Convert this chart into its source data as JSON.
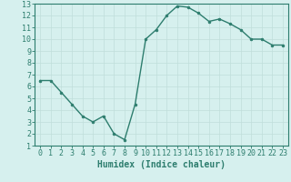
{
  "x": [
    0,
    1,
    2,
    3,
    4,
    5,
    6,
    7,
    8,
    9,
    10,
    11,
    12,
    13,
    14,
    15,
    16,
    17,
    18,
    19,
    20,
    21,
    22,
    23
  ],
  "y": [
    6.5,
    6.5,
    5.5,
    4.5,
    3.5,
    3.0,
    3.5,
    2.0,
    1.5,
    4.5,
    10.0,
    10.8,
    12.0,
    12.8,
    12.7,
    12.2,
    11.5,
    11.7,
    11.3,
    10.8,
    10.0,
    10.0,
    9.5,
    9.5
  ],
  "line_color": "#2d7d6e",
  "marker": "o",
  "marker_size": 2,
  "bg_color": "#d6f0ee",
  "grid_color": "#c0deda",
  "xlabel": "Humidex (Indice chaleur)",
  "xlim": [
    -0.5,
    23.5
  ],
  "ylim": [
    1,
    13
  ],
  "xticks": [
    0,
    1,
    2,
    3,
    4,
    5,
    6,
    7,
    8,
    9,
    10,
    11,
    12,
    13,
    14,
    15,
    16,
    17,
    18,
    19,
    20,
    21,
    22,
    23
  ],
  "yticks": [
    1,
    2,
    3,
    4,
    5,
    6,
    7,
    8,
    9,
    10,
    11,
    12,
    13
  ],
  "tick_label_color": "#2d7d6e",
  "axis_color": "#2d7d6e",
  "xlabel_color": "#2d7d6e",
  "xlabel_fontsize": 7,
  "tick_fontsize": 6,
  "linewidth": 1.0
}
